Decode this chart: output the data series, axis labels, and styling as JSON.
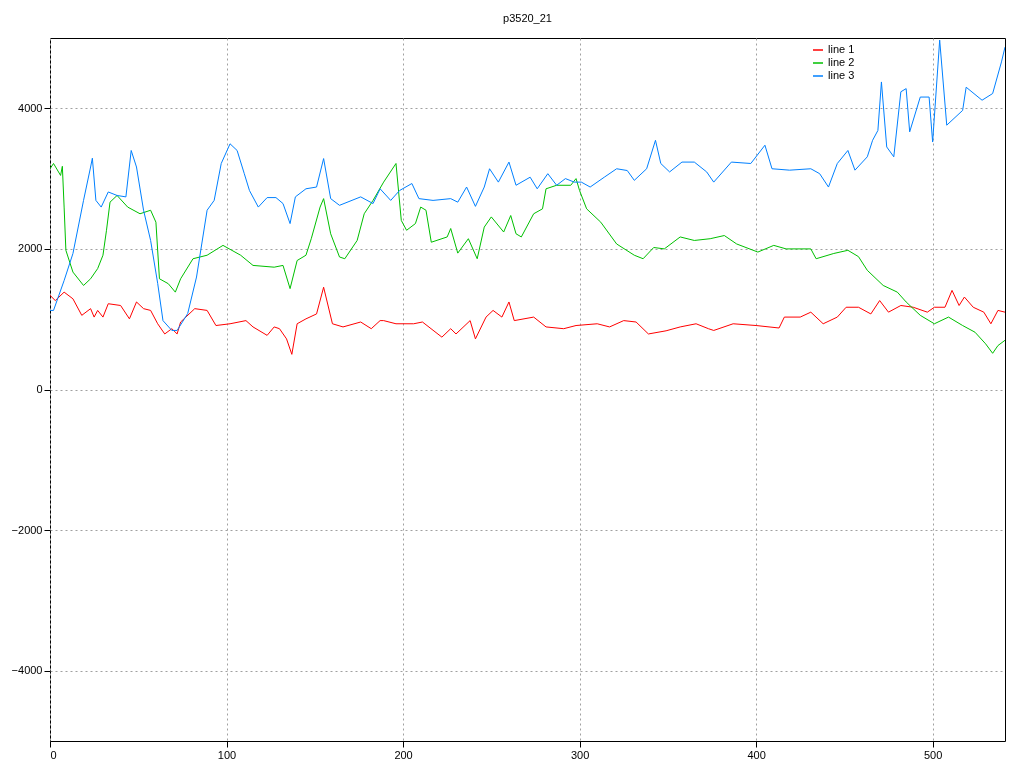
{
  "chart_data": {
    "type": "line",
    "title": "p3520_21",
    "xlim": [
      0,
      541
    ],
    "xticks": [
      0,
      100,
      200,
      300,
      400,
      500
    ],
    "ylim": [
      -5000,
      5000
    ],
    "yticks": [
      -4000,
      -2000,
      0,
      2000,
      4000
    ],
    "grid": true,
    "legend": "top right",
    "series": [
      {
        "name": "line 1",
        "color": "#ff0000",
        "x": [
          0,
          3,
          8,
          13,
          18,
          23,
          25,
          27,
          30,
          33,
          40,
          45,
          49,
          53,
          57,
          61,
          65,
          69,
          72,
          74,
          82,
          89,
          94,
          102,
          111,
          115,
          123,
          127,
          130,
          134,
          137,
          140,
          145,
          151,
          155,
          160,
          166,
          176,
          182,
          187,
          189,
          196,
          206,
          211,
          222,
          227,
          230,
          238,
          241,
          247,
          251,
          256,
          260,
          263,
          274,
          281,
          291,
          298,
          310,
          317,
          325,
          332,
          339,
          349,
          357,
          366,
          373,
          376,
          387,
          400,
          413,
          416,
          425,
          431,
          438,
          446,
          451,
          458,
          465,
          470,
          475,
          482,
          489,
          497,
          501,
          507,
          511,
          515,
          518,
          523,
          529,
          533,
          537,
          541
        ],
        "values": [
          1340,
          1265,
          1385,
          1290,
          1055,
          1150,
          1030,
          1125,
          1030,
          1220,
          1195,
          1005,
          1245,
          1150,
          1125,
          935,
          790,
          865,
          790,
          960,
          1150,
          1125,
          910,
          935,
          980,
          890,
          770,
          890,
          865,
          720,
          500,
          935,
          1005,
          1075,
          1455,
          935,
          890,
          960,
          865,
          980,
          980,
          935,
          935,
          960,
          745,
          865,
          790,
          980,
          720,
          1030,
          1125,
          1030,
          1245,
          980,
          1030,
          890,
          865,
          910,
          935,
          890,
          980,
          960,
          790,
          835,
          890,
          935,
          865,
          840,
          935,
          910,
          875,
          1030,
          1030,
          1100,
          935,
          1030,
          1170,
          1170,
          1075,
          1265,
          1100,
          1195,
          1170,
          1100,
          1170,
          1170,
          1410,
          1195,
          1315,
          1170,
          1100,
          935,
          1125,
          1100
        ]
      },
      {
        "name": "line 2",
        "color": "#00c000",
        "x": [
          0,
          2,
          6,
          7,
          8,
          9,
          13,
          19,
          23,
          27,
          30,
          32,
          34,
          38,
          44,
          51,
          57,
          60,
          62,
          67,
          71,
          74,
          81,
          89,
          98,
          108,
          115,
          127,
          132,
          136,
          140,
          145,
          148,
          153,
          155,
          159,
          164,
          167,
          174,
          178,
          183,
          189,
          196,
          199,
          202,
          207,
          210,
          213,
          216,
          225,
          227,
          231,
          237,
          242,
          246,
          250,
          257,
          261,
          264,
          267,
          274,
          279,
          281,
          287,
          295,
          298,
          300,
          304,
          312,
          321,
          331,
          336,
          342,
          348,
          357,
          365,
          374,
          382,
          389,
          401,
          410,
          417,
          431,
          434,
          444,
          452,
          458,
          463,
          472,
          480,
          485,
          493,
          501,
          509,
          517,
          524,
          530,
          534,
          537,
          541
        ],
        "values": [
          3140,
          3215,
          3045,
          3175,
          2595,
          1980,
          1670,
          1480,
          1575,
          1720,
          1910,
          2265,
          2665,
          2760,
          2595,
          2500,
          2550,
          2380,
          1575,
          1505,
          1385,
          1575,
          1860,
          1910,
          2050,
          1910,
          1765,
          1740,
          1765,
          1435,
          1835,
          1910,
          2145,
          2595,
          2715,
          2215,
          1885,
          1860,
          2120,
          2500,
          2690,
          2950,
          3215,
          2405,
          2265,
          2360,
          2595,
          2550,
          2095,
          2170,
          2290,
          1940,
          2145,
          1860,
          2310,
          2455,
          2240,
          2475,
          2215,
          2170,
          2500,
          2570,
          2855,
          2905,
          2905,
          3000,
          2830,
          2570,
          2380,
          2070,
          1910,
          1860,
          2020,
          2000,
          2170,
          2120,
          2145,
          2190,
          2070,
          1955,
          2050,
          2000,
          2000,
          1860,
          1935,
          1980,
          1890,
          1695,
          1480,
          1385,
          1245,
          1055,
          935,
          1030,
          910,
          815,
          650,
          515,
          625,
          700
        ]
      },
      {
        "name": "line 3",
        "color": "#0080ff",
        "x": [
          0,
          2,
          8,
          13,
          19,
          23,
          24,
          26,
          29,
          33,
          38,
          43,
          46,
          49,
          53,
          57,
          61,
          64,
          69,
          72,
          78,
          83,
          89,
          93,
          97,
          102,
          106,
          110,
          113,
          118,
          123,
          128,
          132,
          136,
          139,
          145,
          151,
          155,
          159,
          164,
          176,
          183,
          187,
          193,
          198,
          205,
          209,
          217,
          227,
          231,
          236,
          241,
          246,
          249,
          254,
          260,
          264,
          272,
          276,
          282,
          287,
          292,
          297,
          301,
          306,
          314,
          321,
          327,
          331,
          338,
          343,
          346,
          351,
          358,
          365,
          372,
          376,
          386,
          397,
          405,
          409,
          419,
          431,
          436,
          441,
          446,
          452,
          456,
          463,
          466,
          469,
          471,
          474,
          478,
          482,
          485,
          487,
          493,
          498,
          500,
          504,
          508,
          517,
          519,
          528,
          534,
          539,
          541
        ],
        "values": [
          1125,
          1125,
          1550,
          1935,
          2690,
          3165,
          3290,
          2690,
          2595,
          2810,
          2760,
          2740,
          3400,
          3165,
          2550,
          2120,
          1510,
          980,
          840,
          840,
          1080,
          1600,
          2550,
          2690,
          3215,
          3495,
          3400,
          3075,
          2830,
          2595,
          2730,
          2730,
          2645,
          2360,
          2740,
          2855,
          2880,
          3285,
          2715,
          2620,
          2740,
          2645,
          2855,
          2690,
          2830,
          2930,
          2715,
          2690,
          2715,
          2665,
          2880,
          2605,
          2880,
          3140,
          2950,
          3235,
          2905,
          3020,
          2855,
          3070,
          2905,
          3000,
          2950,
          2950,
          2880,
          3020,
          3140,
          3115,
          2975,
          3140,
          3545,
          3215,
          3095,
          3235,
          3235,
          3095,
          2950,
          3235,
          3215,
          3475,
          3140,
          3120,
          3140,
          3070,
          2880,
          3215,
          3400,
          3120,
          3310,
          3545,
          3685,
          4375,
          3450,
          3310,
          4235,
          4280,
          3665,
          4160,
          4160,
          3520,
          4970,
          3760,
          3970,
          4300,
          4115,
          4210,
          4660,
          4870
        ]
      }
    ]
  }
}
